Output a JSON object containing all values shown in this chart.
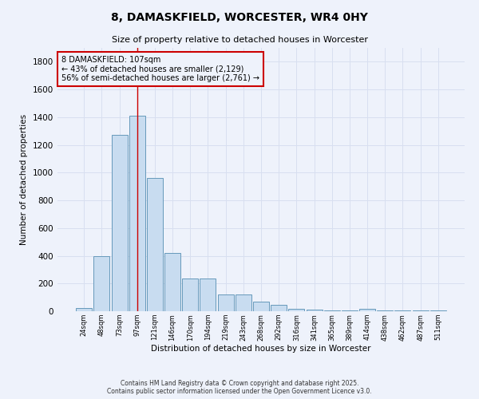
{
  "title": "8, DAMASKFIELD, WORCESTER, WR4 0HY",
  "subtitle": "Size of property relative to detached houses in Worcester",
  "xlabel": "Distribution of detached houses by size in Worcester",
  "ylabel": "Number of detached properties",
  "bar_labels": [
    "24sqm",
    "48sqm",
    "73sqm",
    "97sqm",
    "121sqm",
    "146sqm",
    "170sqm",
    "194sqm",
    "219sqm",
    "243sqm",
    "268sqm",
    "292sqm",
    "316sqm",
    "341sqm",
    "365sqm",
    "389sqm",
    "414sqm",
    "438sqm",
    "462sqm",
    "487sqm",
    "511sqm"
  ],
  "bar_values": [
    25,
    400,
    1270,
    1410,
    960,
    420,
    235,
    235,
    120,
    120,
    70,
    45,
    15,
    10,
    5,
    5,
    15,
    5,
    5,
    5,
    5
  ],
  "bar_color": "#c8dcf0",
  "bar_edge_color": "#6699bb",
  "grid_color": "#d8dff0",
  "bg_color": "#eef2fb",
  "red_line_x": 3.0,
  "annotation_text": "8 DAMASKFIELD: 107sqm\n← 43% of detached houses are smaller (2,129)\n56% of semi-detached houses are larger (2,761) →",
  "footnote1": "Contains HM Land Registry data © Crown copyright and database right 2025.",
  "footnote2": "Contains public sector information licensed under the Open Government Licence v3.0.",
  "ylim": [
    0,
    1900
  ],
  "yticks": [
    0,
    200,
    400,
    600,
    800,
    1000,
    1200,
    1400,
    1600,
    1800
  ]
}
